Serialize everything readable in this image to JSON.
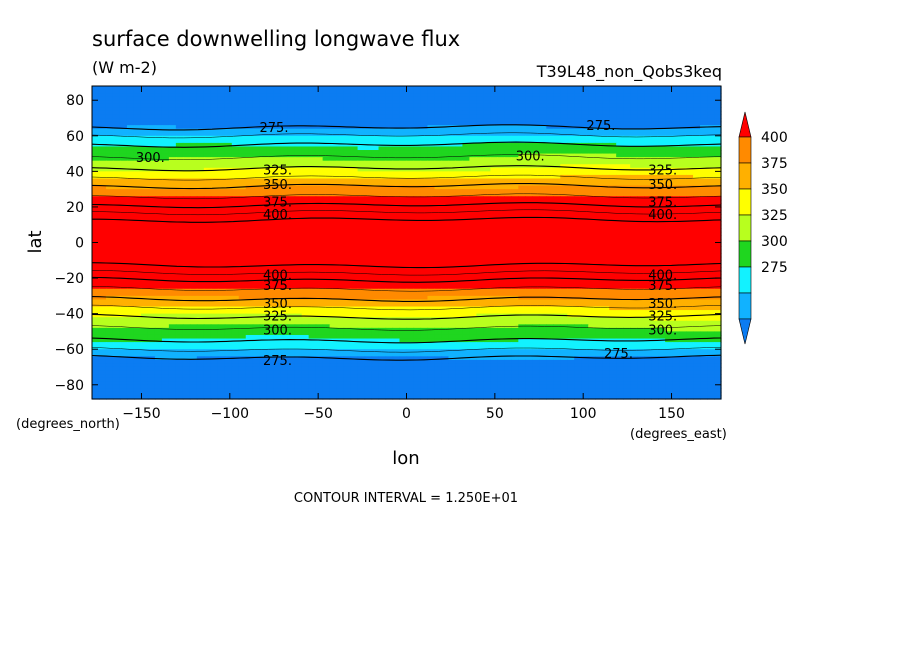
{
  "chart_data": {
    "type": "heatmap",
    "title": "surface downwelling longwave flux",
    "units": "(W m-2)",
    "experiment": "T39L48_non_Qobs3keq",
    "xlabel": "lon",
    "ylabel": "lat",
    "x_units": "(degrees_east)",
    "y_units": "(degrees_north)",
    "xlim": [
      -178,
      178
    ],
    "ylim": [
      -88,
      88
    ],
    "x_ticks": [
      -150,
      -100,
      -50,
      0,
      50,
      100,
      150
    ],
    "y_ticks": [
      -80,
      -60,
      -40,
      -20,
      0,
      20,
      40,
      60,
      80
    ],
    "contour_interval": "CONTOUR INTERVAL = 1.250E+01",
    "colorbar": {
      "levels": [
        "275",
        "300",
        "325",
        "350",
        "375",
        "400"
      ],
      "colors": [
        "#0b7cf2",
        "#11b2ff",
        "#12f2ff",
        "#1fd61f",
        "#b8ff1e",
        "#ffff00",
        "#ffb000",
        "#ff8a00",
        "#ff0000"
      ],
      "extend": "both"
    },
    "zonal_profile": {
      "lat": [
        -88,
        -76,
        -67,
        -64,
        -61,
        -57,
        -52,
        -47,
        -42,
        -37,
        -32,
        -27,
        -22,
        -17,
        -12,
        -6,
        0,
        6,
        12,
        17,
        22,
        27,
        32,
        37,
        42,
        47,
        52,
        57,
        61,
        64,
        67,
        76,
        88
      ],
      "flux": [
        245,
        262,
        272,
        276,
        285,
        296,
        305,
        314,
        324,
        336,
        349,
        360,
        372,
        387,
        402,
        415,
        420,
        415,
        402,
        387,
        372,
        360,
        349,
        336,
        324,
        314,
        305,
        296,
        285,
        276,
        272,
        262,
        245
      ]
    },
    "contour_labels": [
      {
        "text": "275.",
        "lon": -75,
        "lat": 65
      },
      {
        "text": "275.",
        "lon": 110,
        "lat": 66
      },
      {
        "text": "300.",
        "lon": -145,
        "lat": 48
      },
      {
        "text": "300.",
        "lon": 70,
        "lat": 49
      },
      {
        "text": "325.",
        "lon": -73,
        "lat": 41
      },
      {
        "text": "325.",
        "lon": 145,
        "lat": 41
      },
      {
        "text": "350.",
        "lon": -73,
        "lat": 33
      },
      {
        "text": "350.",
        "lon": 145,
        "lat": 33
      },
      {
        "text": "375.",
        "lon": -73,
        "lat": 23
      },
      {
        "text": "375.",
        "lon": 145,
        "lat": 23
      },
      {
        "text": "400.",
        "lon": -73,
        "lat": 16
      },
      {
        "text": "400.",
        "lon": 145,
        "lat": 16
      },
      {
        "text": "400.",
        "lon": -73,
        "lat": -18
      },
      {
        "text": "400.",
        "lon": 145,
        "lat": -18
      },
      {
        "text": "375.",
        "lon": -73,
        "lat": -24
      },
      {
        "text": "375.",
        "lon": 145,
        "lat": -24
      },
      {
        "text": "350.",
        "lon": -73,
        "lat": -34
      },
      {
        "text": "350.",
        "lon": 145,
        "lat": -34
      },
      {
        "text": "325.",
        "lon": -73,
        "lat": -41
      },
      {
        "text": "325.",
        "lon": 145,
        "lat": -41
      },
      {
        "text": "300.",
        "lon": -73,
        "lat": -49
      },
      {
        "text": "300.",
        "lon": 145,
        "lat": -49
      },
      {
        "text": "275.",
        "lon": -73,
        "lat": -66
      },
      {
        "text": "275.",
        "lon": 120,
        "lat": -62
      }
    ]
  }
}
